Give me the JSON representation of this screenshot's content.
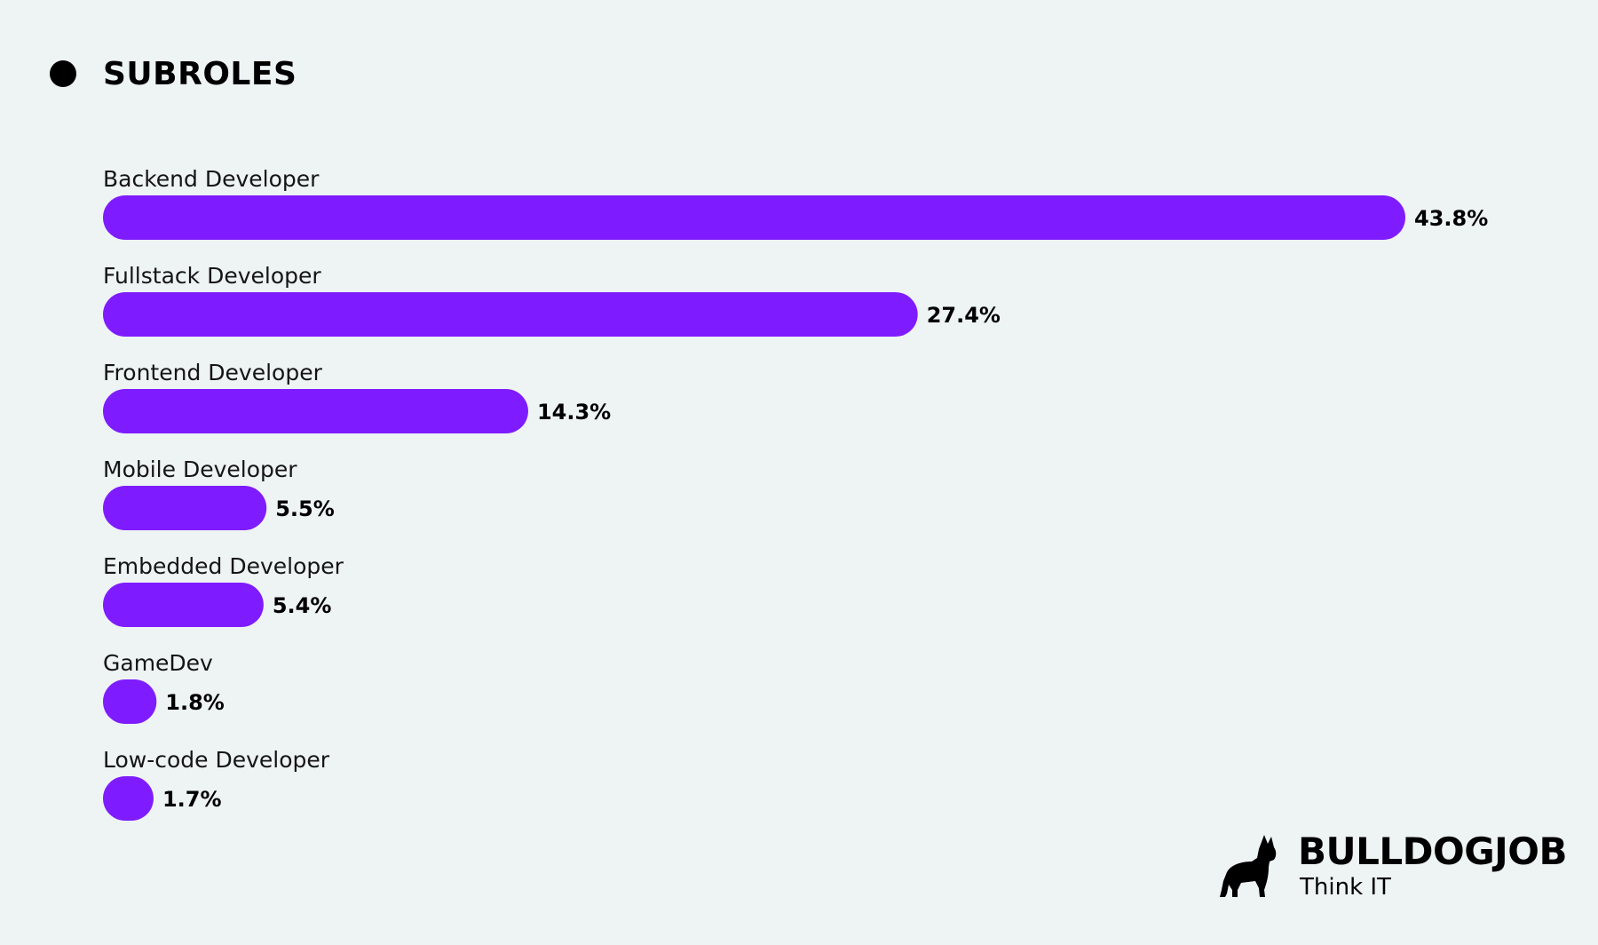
{
  "colors": {
    "background": "#eef3f4",
    "bar": "#7e1cff",
    "text": "#000000"
  },
  "chart_data": {
    "type": "bar",
    "orientation": "horizontal",
    "title": "SUBROLES",
    "categories": [
      "Backend Developer",
      "Fullstack Developer",
      "Frontend Developer",
      "Mobile Developer",
      "Embedded Developer",
      "GameDev",
      "Low-code Developer"
    ],
    "values": [
      43.8,
      27.4,
      14.3,
      5.5,
      5.4,
      1.8,
      1.7
    ],
    "value_labels": [
      "43.8%",
      "27.4%",
      "14.3%",
      "5.5%",
      "5.4%",
      "1.8%",
      "1.7%"
    ],
    "unit": "%",
    "xlim": [
      0,
      43.8
    ],
    "grid": false,
    "legend": "none"
  },
  "logo": {
    "icon": "bulldog-icon",
    "brand": "BULLDOGJOB",
    "tagline": "Think IT"
  }
}
